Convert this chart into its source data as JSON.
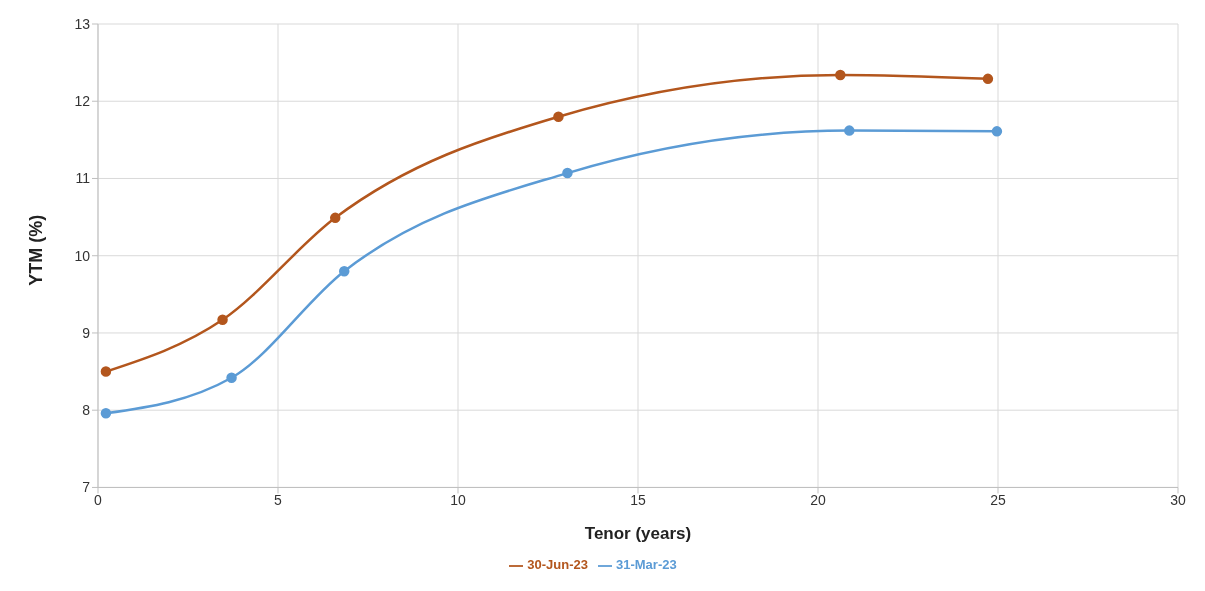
{
  "chart_data": {
    "type": "line",
    "xlabel": "Tenor (years)",
    "ylabel": "YTM (%)",
    "xlim": [
      0,
      30
    ],
    "xticks": [
      0,
      5,
      10,
      15,
      20,
      25,
      30
    ],
    "ylim": [
      7,
      13
    ],
    "yticks": [
      7,
      8,
      9,
      10,
      11,
      12,
      13
    ],
    "grid": true,
    "legend": "bottom",
    "marker": "circle",
    "line_style": "solid",
    "series": [
      {
        "name": "30-Jun-23",
        "color": "#b3561d",
        "x": [
          0.22,
          3.46,
          6.59,
          12.79,
          20.62,
          24.72
        ],
        "values": [
          8.5,
          9.17,
          10.49,
          11.8,
          12.34,
          12.29
        ]
      },
      {
        "name": "31-Mar-23",
        "color": "#5b9bd5",
        "x": [
          0.22,
          3.71,
          6.84,
          13.04,
          20.87,
          24.97
        ],
        "values": [
          7.96,
          8.42,
          9.8,
          11.07,
          11.62,
          11.61
        ]
      }
    ]
  }
}
